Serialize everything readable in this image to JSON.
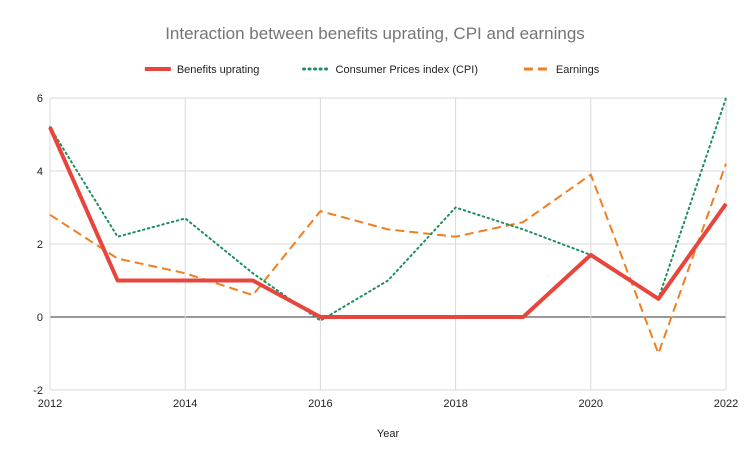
{
  "chart_data": {
    "type": "line",
    "title": "Interaction between benefits uprating, CPI and earnings",
    "xlabel": "Year",
    "ylabel": "",
    "x": [
      2012,
      2013,
      2014,
      2015,
      2016,
      2017,
      2018,
      2019,
      2020,
      2021,
      2022
    ],
    "x_ticks": [
      "2012",
      "2014",
      "2016",
      "2018",
      "2020",
      "2022"
    ],
    "xlim": [
      2012,
      2022
    ],
    "ylim": [
      -2,
      6
    ],
    "y_ticks": [
      "-2",
      "0",
      "2",
      "4",
      "6"
    ],
    "grid": true,
    "legend_position": "top",
    "series": [
      {
        "name": "Benefits uprating",
        "color": "#e8453c",
        "style": "solid",
        "values": [
          5.2,
          1.0,
          1.0,
          1.0,
          0.0,
          0.0,
          0.0,
          0.0,
          1.7,
          0.5,
          3.1
        ]
      },
      {
        "name": "Consumer Prices index (CPI)",
        "color": "#1e8e5e",
        "style": "dotted",
        "values": [
          5.2,
          2.2,
          2.7,
          1.2,
          -0.1,
          1.0,
          3.0,
          2.4,
          1.7,
          0.5,
          6.0
        ]
      },
      {
        "name": "Earnings",
        "color": "#f07f21",
        "style": "dashed",
        "values": [
          2.8,
          1.6,
          1.2,
          0.6,
          2.9,
          2.4,
          2.2,
          2.6,
          3.9,
          -1.0,
          4.2
        ]
      }
    ]
  }
}
